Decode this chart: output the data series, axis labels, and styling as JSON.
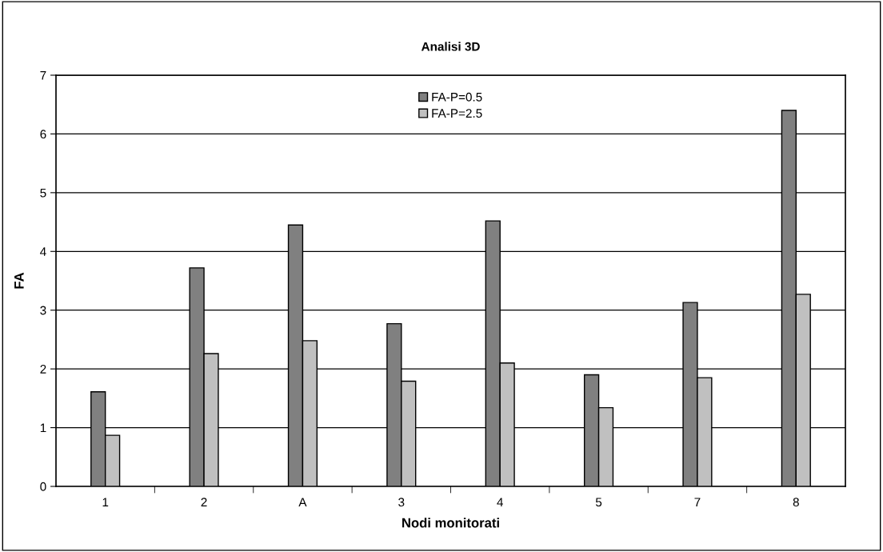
{
  "chart_data": {
    "type": "bar",
    "title": "Analisi 3D",
    "xlabel": "Nodi monitorati",
    "ylabel": "FA",
    "categories": [
      "1",
      "2",
      "A",
      "3",
      "4",
      "5",
      "7",
      "8"
    ],
    "series": [
      {
        "name": "FA-P=0.5",
        "color": "#808080",
        "values": [
          1.61,
          3.72,
          4.45,
          2.77,
          4.52,
          1.9,
          3.13,
          6.4
        ]
      },
      {
        "name": "FA-P=2.5",
        "color": "#c0c0c0",
        "values": [
          0.87,
          2.26,
          2.48,
          1.79,
          2.1,
          1.34,
          1.85,
          3.27
        ]
      }
    ],
    "ylim": [
      0,
      7
    ],
    "yticks": [
      0,
      1,
      2,
      3,
      4,
      5,
      6,
      7
    ],
    "grid": "y",
    "legend": "top"
  }
}
